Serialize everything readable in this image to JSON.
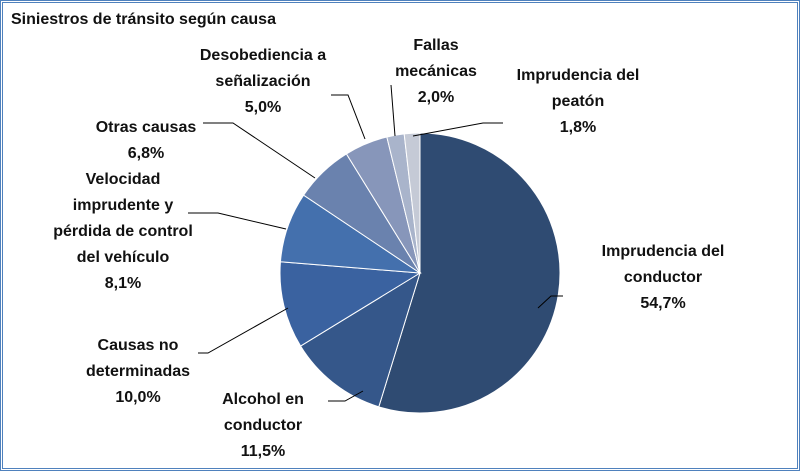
{
  "chart_data": {
    "type": "pie",
    "title": "Siniestros de tránsito según causa",
    "categories": [
      "Imprudencia del conductor",
      "Alcohol en conductor",
      "Causas no determinadas",
      "Velocidad imprudente y pérdida de control del vehículo",
      "Otras causas",
      "Desobediencia a señalización",
      "Fallas mecánicas",
      "Imprudencia del peatón"
    ],
    "values": [
      54.7,
      11.5,
      10.0,
      8.1,
      6.8,
      5.0,
      2.0,
      1.8
    ],
    "value_labels": [
      "54,7%",
      "11,5%",
      "10,0%",
      "8,1%",
      "6,8%",
      "5,0%",
      "2,0%",
      "1,8%"
    ],
    "colors": [
      "#2f4b72",
      "#35578a",
      "#3a62a0",
      "#4470ad",
      "#6a82ae",
      "#8796ba",
      "#a9b4cb",
      "#c5cad6"
    ]
  }
}
